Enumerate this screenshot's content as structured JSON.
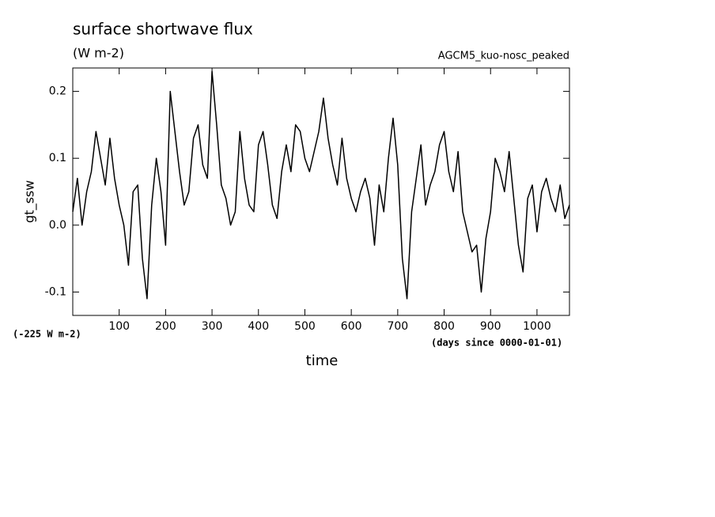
{
  "chart_data": {
    "type": "line",
    "title": "surface shortwave flux",
    "subtitle": "(W m-2)",
    "annotation": "AGCM5_kuo-nosc_peaked",
    "offset_note": "(-225 W m-2)",
    "x_unit_note": "(days since 0000-01-01)",
    "xlabel": "time",
    "ylabel": "gt_ssw",
    "xlim": [
      0,
      1070
    ],
    "ylim": [
      -0.135,
      0.235
    ],
    "xticks": [
      100,
      200,
      300,
      400,
      500,
      600,
      700,
      800,
      900,
      1000
    ],
    "yticks": [
      -0.1,
      {
        "value": 0,
        "label": "0.0"
      },
      0.1,
      0.2
    ],
    "x": [
      0,
      10,
      20,
      30,
      40,
      50,
      60,
      70,
      80,
      90,
      100,
      110,
      120,
      130,
      140,
      150,
      160,
      170,
      180,
      190,
      200,
      210,
      220,
      230,
      240,
      250,
      260,
      270,
      280,
      290,
      300,
      310,
      320,
      330,
      340,
      350,
      360,
      370,
      380,
      390,
      400,
      410,
      420,
      430,
      440,
      450,
      460,
      470,
      480,
      490,
      500,
      510,
      520,
      530,
      540,
      550,
      560,
      570,
      580,
      590,
      600,
      610,
      620,
      630,
      640,
      650,
      660,
      670,
      680,
      690,
      700,
      710,
      720,
      730,
      740,
      750,
      760,
      770,
      780,
      790,
      800,
      810,
      820,
      830,
      840,
      850,
      860,
      870,
      880,
      890,
      900,
      910,
      920,
      930,
      940,
      950,
      960,
      970,
      980,
      990,
      1000,
      1010,
      1020,
      1030,
      1040,
      1050,
      1060,
      1070
    ],
    "series": [
      {
        "color": "#000000",
        "values": [
          0.02,
          0.07,
          0.0,
          0.05,
          0.08,
          0.14,
          0.1,
          0.06,
          0.13,
          0.07,
          0.03,
          0.0,
          -0.06,
          0.05,
          0.06,
          -0.05,
          -0.11,
          0.03,
          0.1,
          0.05,
          -0.03,
          0.2,
          0.14,
          0.08,
          0.03,
          0.05,
          0.13,
          0.15,
          0.09,
          0.07,
          0.23,
          0.15,
          0.06,
          0.04,
          0.0,
          0.02,
          0.14,
          0.07,
          0.03,
          0.02,
          0.12,
          0.14,
          0.09,
          0.03,
          0.01,
          0.08,
          0.12,
          0.08,
          0.15,
          0.14,
          0.1,
          0.08,
          0.11,
          0.14,
          0.19,
          0.13,
          0.09,
          0.06,
          0.13,
          0.07,
          0.04,
          0.02,
          0.05,
          0.07,
          0.04,
          -0.03,
          0.06,
          0.02,
          0.1,
          0.16,
          0.09,
          -0.05,
          -0.11,
          0.02,
          0.07,
          0.12,
          0.03,
          0.06,
          0.08,
          0.12,
          0.14,
          0.08,
          0.05,
          0.11,
          0.02,
          -0.01,
          -0.04,
          -0.03,
          -0.1,
          -0.02,
          0.02,
          0.1,
          0.08,
          0.05,
          0.11,
          0.04,
          -0.03,
          -0.07,
          0.04,
          0.06,
          -0.01,
          0.05,
          0.07,
          0.04,
          0.02,
          0.06,
          0.01,
          0.03
        ]
      }
    ]
  }
}
